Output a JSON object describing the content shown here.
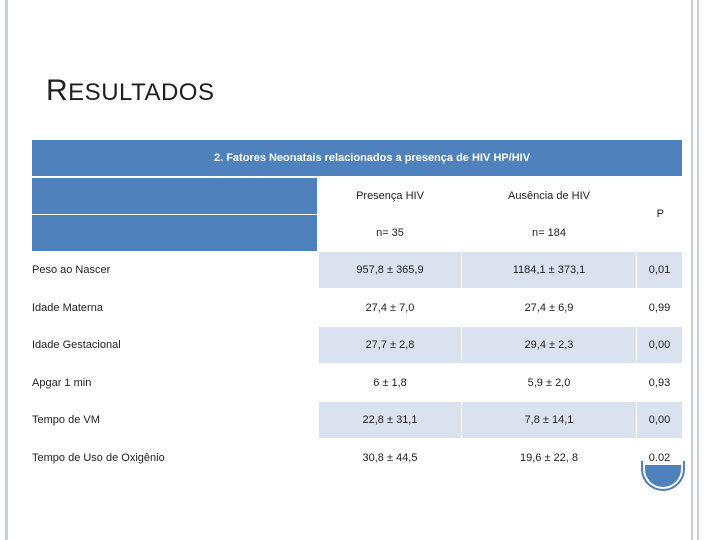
{
  "slide": {
    "title_cap": "R",
    "title_rest": "ESULTADOS"
  },
  "table": {
    "caption": "2. Fatores Neonatais relacionados a presença de HIV HP/HIV",
    "col_presenca": "Presença HIV",
    "col_ausencia": "Ausência de HIV",
    "col_p": "P",
    "n_presenca": "n= 35",
    "n_ausencia": "n= 184",
    "rows": [
      {
        "label": "Peso ao Nascer",
        "presenca": "957,8 ± 365,9",
        "ausencia": "1184,1 ± 373,1",
        "p": "0,01"
      },
      {
        "label": "Idade Materna",
        "presenca": "27,4 ± 7,0",
        "ausencia": "27,4 ± 6,9",
        "p": "0,99"
      },
      {
        "label": "Idade Gestacional",
        "presenca": "27,7 ± 2,8",
        "ausencia": "29,4 ± 2,3",
        "p": "0,00"
      },
      {
        "label": "Apgar 1 min",
        "presenca": "6 ± 1,8",
        "ausencia": "5,9 ± 2,0",
        "p": "0,93"
      },
      {
        "label": "Tempo de VM",
        "presenca": "22,8 ± 31,1",
        "ausencia": "7,8 ± 14,1",
        "p": "0,00"
      },
      {
        "label": "Tempo de Uso de Oxigênio",
        "presenca": "30,8 ± 44,5",
        "ausencia": "19,6 ± 22, 8",
        "p": "0,02"
      }
    ]
  },
  "colors": {
    "accent": "#4f81bd",
    "row_shade": "#dbe2ef",
    "frame": "#c5cfe0"
  }
}
